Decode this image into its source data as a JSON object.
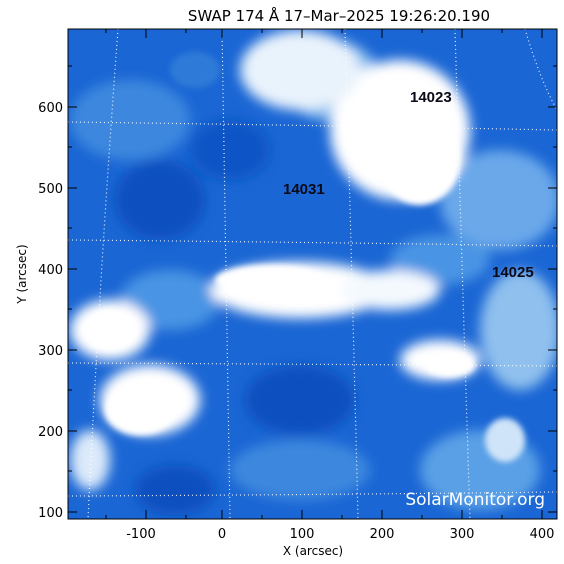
{
  "title": "SWAP 174 Å 17–Mar–2025 19:26:20.190",
  "x_axis": {
    "label": "X (arcsec)",
    "ticks": [
      "-100",
      "0",
      "100",
      "200",
      "300",
      "400"
    ],
    "range": [
      -200,
      410
    ]
  },
  "y_axis": {
    "label": "Y (arcsec)",
    "ticks": [
      "100",
      "200",
      "300",
      "400",
      "500",
      "600"
    ],
    "range": [
      95,
      695
    ]
  },
  "active_regions": [
    {
      "label": "14023"
    },
    {
      "label": "14031"
    },
    {
      "label": "14025"
    }
  ],
  "watermark": "SolarMonitor.org",
  "colors": {
    "deep_blue": "#0050c8",
    "mid_blue": "#3e8ee0",
    "light_blue": "#cfe4f8",
    "bright": "#ffffff"
  }
}
